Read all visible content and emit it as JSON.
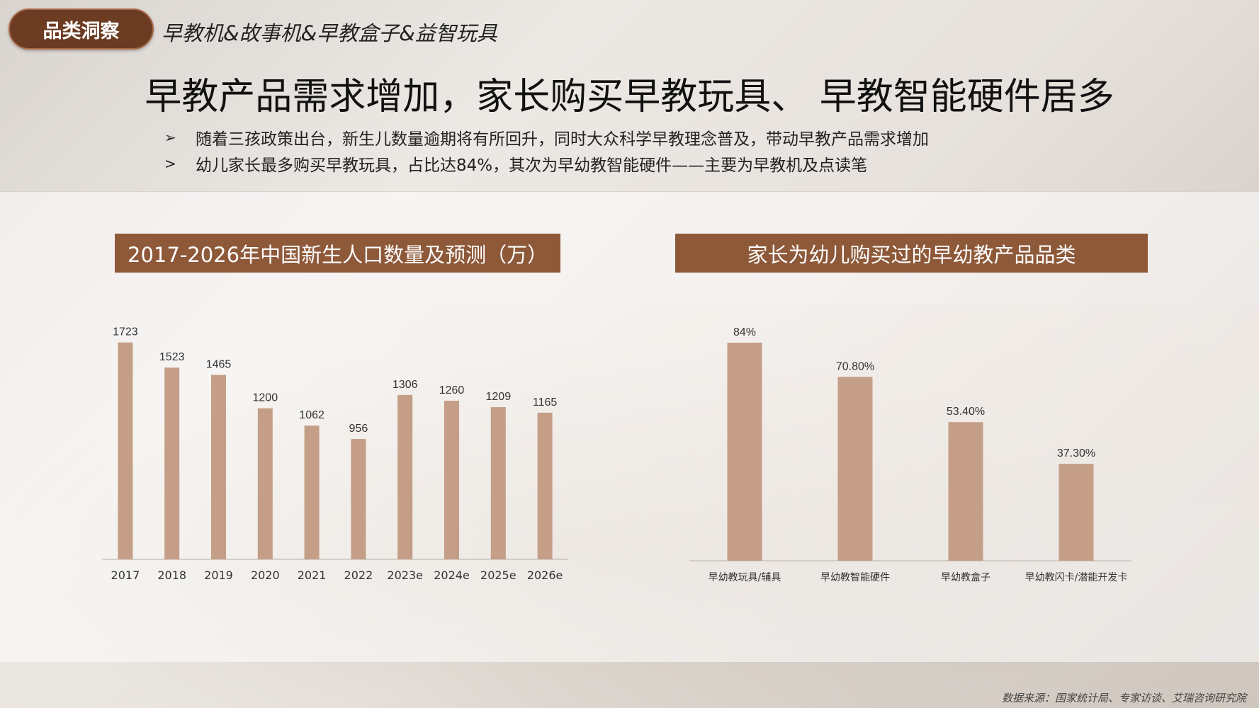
{
  "header": {
    "tag": "品类洞察",
    "subtitle": "早教机&故事机&早教盒子&益智玩具",
    "headline": "早教产品需求增加，家长购买早教玩具、 早教智能硬件居多"
  },
  "bullets": [
    {
      "mark": "➢",
      "text": "随着三孩政策出台，新生儿数量逾期将有所回升，同时大众科学早教理念普及，带动早教产品需求增加"
    },
    {
      "mark": ">",
      "text": "幼儿家长最多购买早教玩具，占比达84%，其次为早幼教智能硬件——主要为早教机及点读笔"
    }
  ],
  "chart_titles": {
    "left": "2017-2026年中国新生人口数量及预测（万）",
    "right": "家长为幼儿购买过的早幼教产品品类"
  },
  "source": "数据来源：国家统计局、专家访谈、艾瑞咨询研究院",
  "colors": {
    "bar": "#c49e86",
    "title_bg": "#8e5939",
    "tag_bg": "#6b3b22"
  },
  "chart_data": [
    {
      "type": "bar",
      "title": "2017-2026年中国新生人口数量及预测（万）",
      "categories": [
        "2017",
        "2018",
        "2019",
        "2020",
        "2021",
        "2022",
        "2023e",
        "2024e",
        "2025e",
        "2026e"
      ],
      "values": [
        1723,
        1523,
        1465,
        1200,
        1062,
        956,
        1306,
        1260,
        1209,
        1165
      ],
      "labels": [
        "1723",
        "1523",
        "1465",
        "1200",
        "1062",
        "956",
        "1306",
        "1260",
        "1209",
        "1165"
      ],
      "ylim": [
        0,
        1800
      ],
      "grid": false
    },
    {
      "type": "bar",
      "title": "家长为幼儿购买过的早幼教产品品类",
      "categories": [
        "早幼教玩具/辅具",
        "早幼教智能硬件",
        "早幼教盒子",
        "早幼教闪卡/潜能开发卡"
      ],
      "values": [
        84,
        70.8,
        53.4,
        37.3
      ],
      "labels": [
        "84%",
        "70.80%",
        "53.40%",
        "37.30%"
      ],
      "ylim": [
        0,
        84
      ],
      "grid": false
    }
  ]
}
